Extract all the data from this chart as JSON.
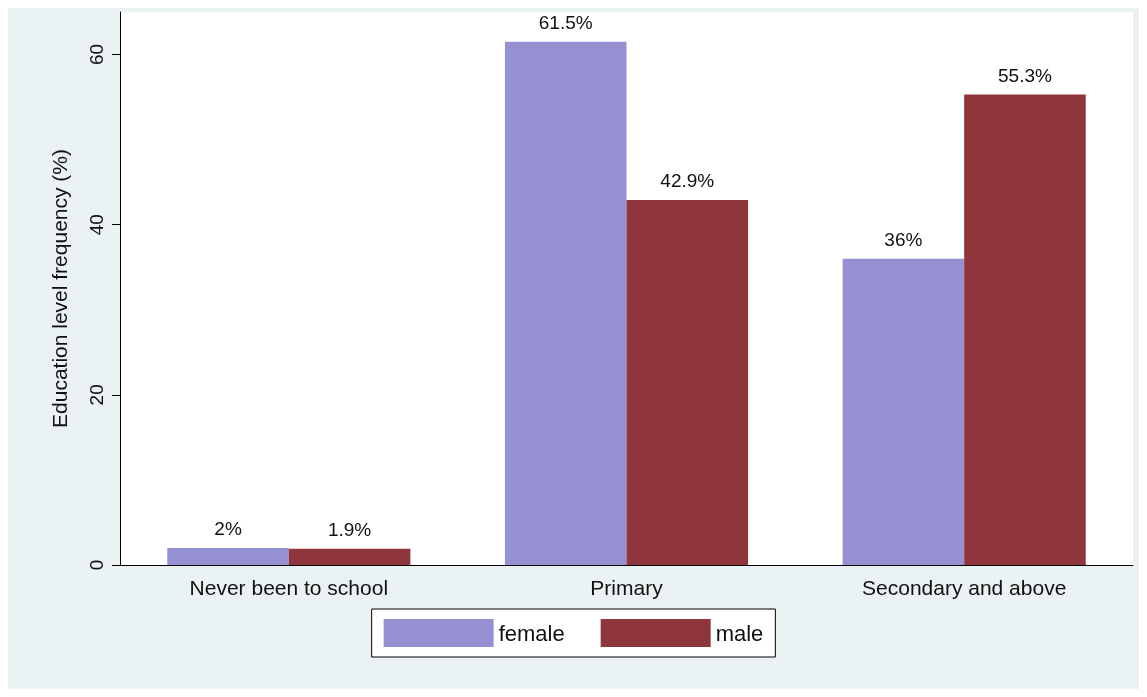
{
  "chart_data": {
    "type": "bar",
    "ylabel": "Education level frequency (%)",
    "categories": [
      "Never been to school",
      "Primary",
      "Secondary and above"
    ],
    "series": [
      {
        "name": "female",
        "color": "#9590d2",
        "values": [
          2,
          61.5,
          36
        ],
        "value_labels": [
          "2%",
          "61.5%",
          "36%"
        ]
      },
      {
        "name": "male",
        "color": "#8f353c",
        "values": [
          1.9,
          42.9,
          55.3
        ],
        "value_labels": [
          "1.9%",
          "42.9%",
          "55.3%"
        ]
      }
    ],
    "ylim": [
      0,
      65
    ],
    "yticks": [
      0,
      20,
      40,
      60
    ],
    "grid": false,
    "legend": "bottom"
  }
}
